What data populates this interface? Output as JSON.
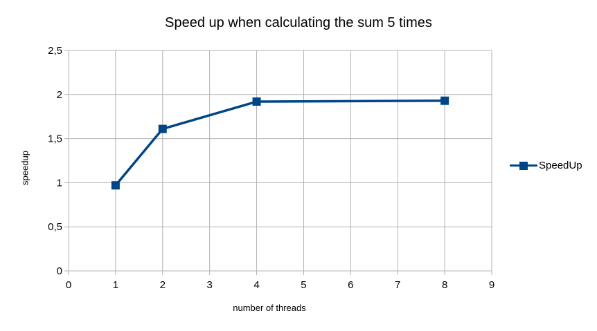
{
  "chart_data": {
    "type": "line",
    "title": "Speed up when calculating the sum 5 times",
    "xlabel": "number of threads",
    "ylabel": "speedup",
    "xlim": [
      0,
      9
    ],
    "ylim": [
      0,
      2.5
    ],
    "x_ticks": [
      "0",
      "1",
      "2",
      "3",
      "4",
      "5",
      "6",
      "7",
      "8",
      "9"
    ],
    "y_ticks": [
      "0",
      "0,5",
      "1",
      "1,5",
      "2",
      "2,5"
    ],
    "grid": true,
    "legend_position": "right",
    "series": [
      {
        "name": "SpeedUp",
        "color": "#004586",
        "marker": "square",
        "x": [
          1,
          2,
          4,
          8
        ],
        "y": [
          0.97,
          1.61,
          1.92,
          1.93
        ]
      }
    ]
  }
}
